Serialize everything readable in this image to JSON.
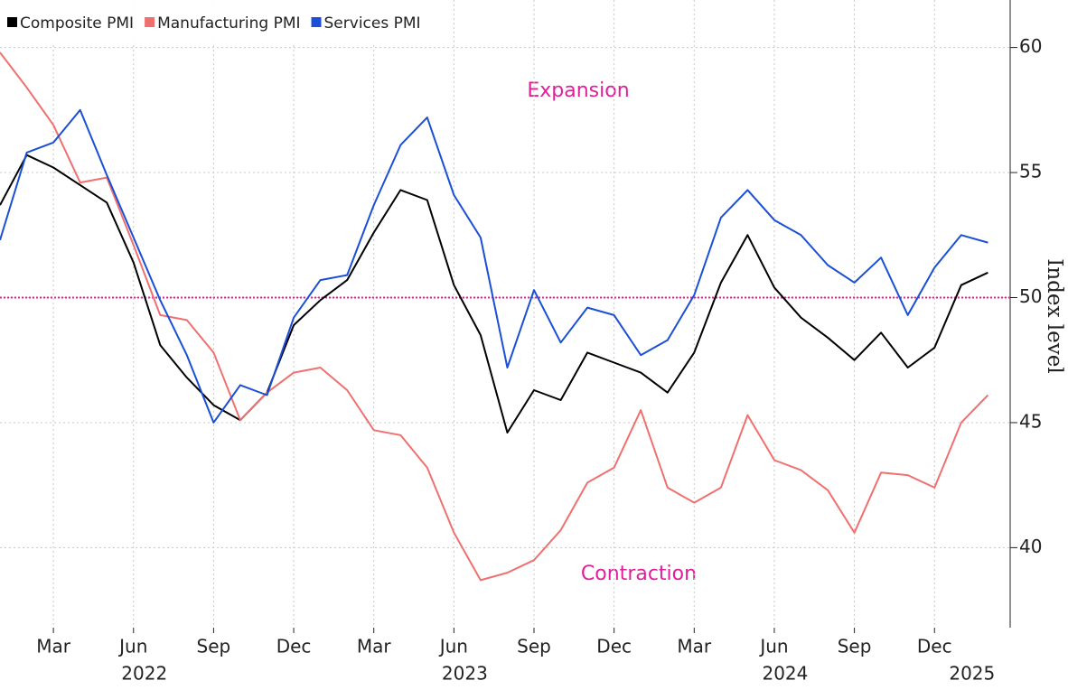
{
  "chart_data": {
    "type": "line",
    "x": [
      "2022-01",
      "2022-02",
      "2022-03",
      "2022-04",
      "2022-05",
      "2022-06",
      "2022-07",
      "2022-08",
      "2022-09",
      "2022-10",
      "2022-11",
      "2022-12",
      "2023-01",
      "2023-02",
      "2023-03",
      "2023-04",
      "2023-05",
      "2023-06",
      "2023-07",
      "2023-08",
      "2023-09",
      "2023-10",
      "2023-11",
      "2023-12",
      "2024-01",
      "2024-02",
      "2024-03",
      "2024-04",
      "2024-05",
      "2024-06",
      "2024-07",
      "2024-08",
      "2024-09",
      "2024-10",
      "2024-11",
      "2024-12",
      "2025-01",
      "2025-02"
    ],
    "series": [
      {
        "name": "Composite PMI",
        "color": "#000000",
        "values": [
          53.7,
          55.7,
          55.2,
          54.5,
          53.8,
          51.4,
          48.1,
          46.8,
          45.7,
          45.1,
          46.2,
          48.9,
          49.9,
          50.7,
          52.6,
          54.3,
          53.9,
          50.5,
          48.5,
          44.6,
          46.3,
          45.9,
          47.8,
          47.4,
          47.0,
          46.2,
          47.8,
          50.6,
          52.5,
          50.4,
          49.2,
          48.4,
          47.5,
          48.6,
          47.2,
          48.0,
          50.5,
          51.0
        ]
      },
      {
        "name": "Manufacturing PMI",
        "color": "#f07070",
        "values": [
          59.8,
          58.4,
          56.9,
          54.6,
          54.8,
          52.1,
          49.3,
          49.1,
          47.8,
          45.1,
          46.2,
          47.0,
          47.2,
          46.3,
          44.7,
          44.5,
          43.2,
          40.6,
          38.7,
          39.0,
          39.5,
          40.7,
          42.6,
          43.2,
          45.5,
          42.4,
          41.8,
          42.4,
          45.3,
          43.5,
          43.1,
          42.3,
          40.6,
          43.0,
          42.9,
          42.4,
          45.0,
          46.1
        ]
      },
      {
        "name": "Services PMI",
        "color": "#1a4fd6",
        "values": [
          52.3,
          55.8,
          56.2,
          57.5,
          54.9,
          52.4,
          49.9,
          47.7,
          45.0,
          46.5,
          46.1,
          49.2,
          50.7,
          50.9,
          53.7,
          56.1,
          57.2,
          54.1,
          52.4,
          47.2,
          50.3,
          48.2,
          49.6,
          49.3,
          47.7,
          48.3,
          50.1,
          53.2,
          54.3,
          53.1,
          52.5,
          51.3,
          50.6,
          51.6,
          49.3,
          51.2,
          52.5,
          52.2
        ]
      }
    ],
    "xticks": [
      {
        "value": "2022-03",
        "label": "Mar"
      },
      {
        "value": "2022-06",
        "label": "Jun"
      },
      {
        "value": "2022-09",
        "label": "Sep"
      },
      {
        "value": "2022-12",
        "label": "Dec"
      },
      {
        "value": "2023-03",
        "label": "Mar"
      },
      {
        "value": "2023-06",
        "label": "Jun"
      },
      {
        "value": "2023-09",
        "label": "Sep"
      },
      {
        "value": "2023-12",
        "label": "Dec"
      },
      {
        "value": "2024-03",
        "label": "Mar"
      },
      {
        "value": "2024-06",
        "label": "Jun"
      },
      {
        "value": "2024-09",
        "label": "Sep"
      },
      {
        "value": "2024-12",
        "label": "Dec"
      }
    ],
    "year_labels": [
      {
        "value": "2022-06",
        "label": "2022"
      },
      {
        "value": "2023-06",
        "label": "2023"
      },
      {
        "value": "2024-06",
        "label": "2024"
      },
      {
        "value": "2025-01",
        "label": "2025"
      }
    ],
    "ylim": [
      36.8,
      61.9
    ],
    "yticks": [
      40,
      45,
      50,
      55,
      60
    ],
    "y_axis_label": "Index level",
    "reference_line": 50,
    "annotations": [
      "Expansion",
      "Contraction"
    ],
    "grid": true,
    "legend": "top-left"
  }
}
